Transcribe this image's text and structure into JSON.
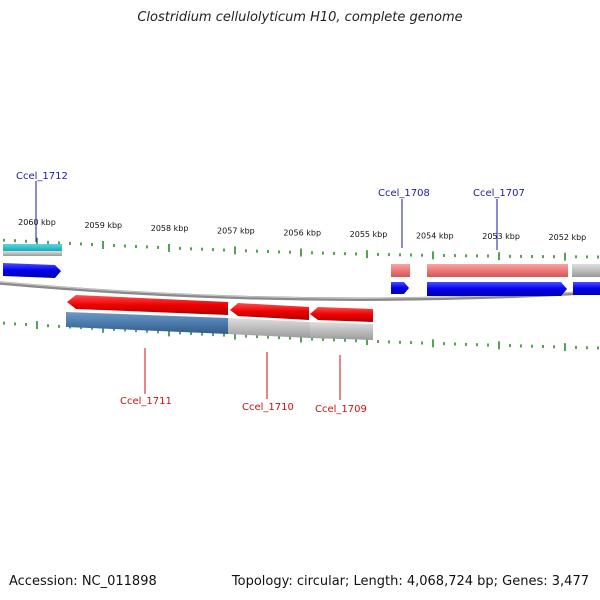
{
  "title": "Clostridium cellulolyticum H10, complete genome",
  "footer": {
    "accession": "Accession: NC_011898",
    "summary": "Topology: circular; Length: 4,068,724 bp; Genes: 3,477"
  },
  "colors": {
    "forward_gene": "#0000ee",
    "reverse_gene": "#ee0000",
    "forward_label": "#1a1aaa",
    "reverse_label": "#cc1111",
    "tick": "#2a8a2a",
    "backbone": "#7a7a7a"
  },
  "scale": {
    "ticks": [
      {
        "label": "2060 kbp"
      },
      {
        "label": "2059 kbp"
      },
      {
        "label": "2058 kbp"
      },
      {
        "label": "2057 kbp"
      },
      {
        "label": "2056 kbp"
      },
      {
        "label": "2055 kbp"
      },
      {
        "label": "2054 kbp"
      },
      {
        "label": "2053 kbp"
      },
      {
        "label": "2052 kbp"
      }
    ]
  },
  "genes": [
    {
      "id": "Ccel_1712",
      "strand": "forward"
    },
    {
      "id": "Ccel_1711",
      "strand": "reverse"
    },
    {
      "id": "Ccel_1710",
      "strand": "reverse"
    },
    {
      "id": "Ccel_1709",
      "strand": "reverse"
    },
    {
      "id": "Ccel_1708",
      "strand": "forward"
    },
    {
      "id": "Ccel_1707",
      "strand": "forward"
    }
  ]
}
